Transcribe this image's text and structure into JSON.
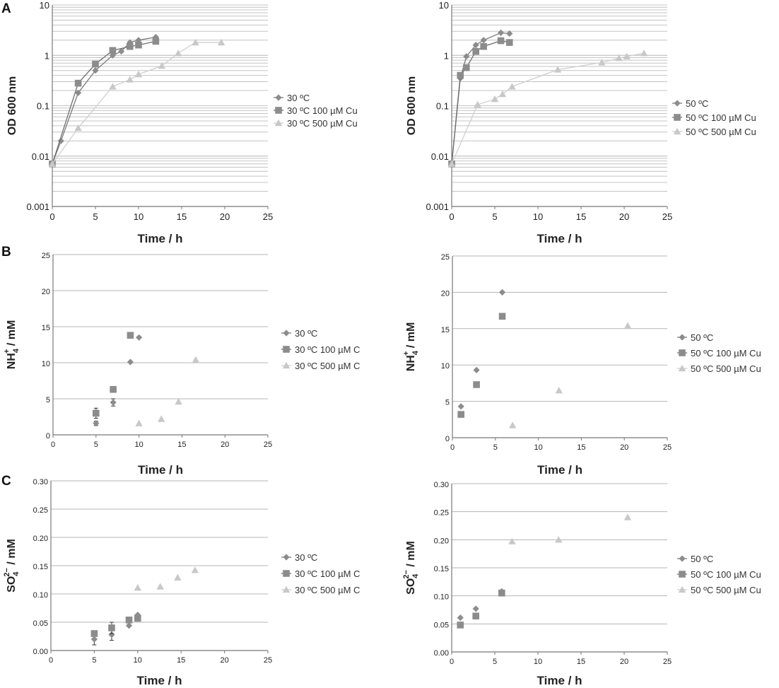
{
  "panel_letters": [
    "A",
    "B",
    "C"
  ],
  "series_colors": {
    "control": "#8c8c8c",
    "cu100": "#8c8c8c",
    "cu500": "#c8c8c8"
  },
  "chart_data": [
    {
      "id": "A1",
      "panel": "A",
      "type": "line",
      "scale": "log",
      "xlabel": "Time / h",
      "ylabel": "OD 600 nm",
      "xlim": [
        0,
        25
      ],
      "ylim": [
        0.001,
        10
      ],
      "xticks": [
        "0",
        "5",
        "10",
        "15",
        "20",
        "25"
      ],
      "yticks": [
        "0.001",
        "0.01",
        "0.1",
        "1",
        "10"
      ],
      "legend_position": "right",
      "series": [
        {
          "name": "30 ºC",
          "marker": "diamond",
          "color": "#8c8c8c",
          "x": [
            0,
            1,
            3,
            5,
            7,
            8,
            9,
            10,
            12
          ],
          "y": [
            0.007,
            0.02,
            0.18,
            0.5,
            1.0,
            1.2,
            1.8,
            2.0,
            2.3
          ]
        },
        {
          "name": "30 ºC 100 µM Cu",
          "marker": "square",
          "color": "#8c8c8c",
          "x": [
            0,
            3,
            5,
            7,
            9,
            10,
            12
          ],
          "y": [
            0.007,
            0.28,
            0.67,
            1.25,
            1.5,
            1.6,
            1.9
          ]
        },
        {
          "name": "30 ºC 500 µM Cu",
          "marker": "triangle",
          "color": "#c8c8c8",
          "x": [
            0,
            3,
            7,
            9,
            10,
            12.7,
            14.6,
            16.6,
            19.6
          ],
          "y": [
            0.007,
            0.036,
            0.24,
            0.33,
            0.42,
            0.62,
            1.1,
            1.8,
            1.8
          ]
        }
      ]
    },
    {
      "id": "A2",
      "panel": "A",
      "type": "line",
      "scale": "log",
      "xlabel": "Time / h",
      "ylabel": "OD 600 nm",
      "xlim": [
        0,
        25
      ],
      "ylim": [
        0.001,
        10
      ],
      "xticks": [
        "0",
        "5",
        "10",
        "15",
        "20",
        "25"
      ],
      "yticks": [
        "0.001",
        "0.01",
        "0.1",
        "1",
        "10"
      ],
      "legend_position": "right",
      "series": [
        {
          "name": "50 ºC",
          "marker": "diamond",
          "color": "#8c8c8c",
          "x": [
            0,
            1,
            1.7,
            2.8,
            3.7,
            5.7,
            6.7
          ],
          "y": [
            0.007,
            0.35,
            0.95,
            1.6,
            2.0,
            2.8,
            2.7
          ]
        },
        {
          "name": "50 ºC  100 µM Cu",
          "marker": "square",
          "color": "#8c8c8c",
          "x": [
            0,
            1,
            1.7,
            2.8,
            3.7,
            5.7,
            6.7
          ],
          "y": [
            0.007,
            0.4,
            0.57,
            1.2,
            1.5,
            1.95,
            1.8
          ]
        },
        {
          "name": "50 ºC  500 µM Cu",
          "marker": "triangle",
          "color": "#c8c8c8",
          "x": [
            0,
            3,
            5,
            5.9,
            7,
            12.3,
            17.4,
            19.4,
            20.3,
            22.3
          ],
          "y": [
            0.007,
            0.105,
            0.135,
            0.17,
            0.24,
            0.52,
            0.72,
            0.88,
            0.95,
            1.1
          ]
        }
      ]
    },
    {
      "id": "B1",
      "panel": "B",
      "type": "scatter",
      "xlabel": "Time / h",
      "ylabel_main": "NH",
      "ylabel_sub": "4",
      "ylabel_sup": "+",
      "ylabel_unit": " / mM",
      "xlim": [
        0,
        25
      ],
      "ylim": [
        0,
        25
      ],
      "xticks": [
        "0",
        "5",
        "10",
        "15",
        "20",
        "25"
      ],
      "yticks": [
        "0",
        "5",
        "10",
        "15",
        "20",
        "25"
      ],
      "legend_position": "right",
      "series": [
        {
          "name": "30 ºC",
          "marker": "diamond",
          "color": "#8c8c8c",
          "x": [
            5,
            7,
            9,
            10
          ],
          "y": [
            1.6,
            4.5,
            10.1,
            13.5
          ],
          "err": [
            0.3,
            0.5,
            0,
            0
          ]
        },
        {
          "name": "30 ºC 100 µM C",
          "marker": "square",
          "color": "#8c8c8c",
          "x": [
            5,
            7,
            9
          ],
          "y": [
            3.0,
            6.3,
            13.8
          ],
          "err": [
            0.7,
            0,
            0
          ]
        },
        {
          "name": "30 ºC 500 µM C",
          "marker": "triangle",
          "color": "#c8c8c8",
          "x": [
            10,
            12.6,
            14.6,
            16.6
          ],
          "y": [
            1.6,
            2.2,
            4.6,
            10.4
          ]
        }
      ]
    },
    {
      "id": "B2",
      "panel": "B",
      "type": "scatter",
      "xlabel": "Time / h",
      "ylabel_main": "NH",
      "ylabel_sub": "4",
      "ylabel_sup": "+",
      "ylabel_unit": " / mM",
      "xlim": [
        0,
        25
      ],
      "ylim": [
        0,
        25
      ],
      "xticks": [
        "0",
        "5",
        "10",
        "15",
        "20",
        "25"
      ],
      "yticks": [
        "0",
        "5",
        "10",
        "15",
        "20",
        "25"
      ],
      "legend_position": "right",
      "series": [
        {
          "name": "50 ºC",
          "marker": "diamond",
          "color": "#8c8c8c",
          "x": [
            1,
            2.8,
            5.8
          ],
          "y": [
            4.3,
            9.3,
            20
          ]
        },
        {
          "name": "50 ºC  100 µM Cu",
          "marker": "square",
          "color": "#8c8c8c",
          "x": [
            1,
            2.8,
            5.8
          ],
          "y": [
            3.2,
            7.3,
            16.7
          ]
        },
        {
          "name": "50 ºC  500 µM Cu",
          "marker": "triangle",
          "color": "#c8c8c8",
          "x": [
            7,
            12.4,
            20.4
          ],
          "y": [
            1.7,
            6.5,
            15.4
          ]
        }
      ]
    },
    {
      "id": "C1",
      "panel": "C",
      "type": "scatter",
      "xlabel": "Time / h",
      "ylabel_main": "SO",
      "ylabel_sub": "4",
      "ylabel_sup": "2−",
      "ylabel_unit": " / mM",
      "xlim": [
        0,
        25
      ],
      "ylim": [
        0,
        0.3
      ],
      "xticks": [
        "0",
        "5",
        "10",
        "15",
        "20",
        "25"
      ],
      "yticks": [
        "0.00",
        "0.05",
        "0.10",
        "0.15",
        "0.20",
        "0.25",
        "0.30"
      ],
      "legend_position": "right",
      "series": [
        {
          "name": "30 ºC",
          "marker": "diamond",
          "color": "#8c8c8c",
          "x": [
            5,
            7,
            9,
            10
          ],
          "y": [
            0.02,
            0.028,
            0.044,
            0.063
          ],
          "err": [
            0.01,
            0.01,
            0,
            0
          ]
        },
        {
          "name": "30 ºC 100 µM C",
          "marker": "square",
          "color": "#8c8c8c",
          "x": [
            5,
            7,
            9,
            10
          ],
          "y": [
            0.03,
            0.04,
            0.054,
            0.057
          ],
          "err": [
            0.005,
            0.01,
            0,
            0
          ]
        },
        {
          "name": "30 ºC 500 µM C",
          "marker": "triangle",
          "color": "#c8c8c8",
          "x": [
            10,
            12.6,
            14.6,
            16.6
          ],
          "y": [
            0.111,
            0.113,
            0.129,
            0.142
          ]
        }
      ]
    },
    {
      "id": "C2",
      "panel": "C",
      "type": "scatter",
      "xlabel": "Time / h",
      "ylabel_main": "SO",
      "ylabel_sub": "4",
      "ylabel_sup": "2−",
      "ylabel_unit": " / mM",
      "xlim": [
        0,
        25
      ],
      "ylim": [
        0,
        0.3
      ],
      "xticks": [
        "0",
        "5",
        "10",
        "15",
        "20",
        "25"
      ],
      "yticks": [
        "0.00",
        "0.05",
        "0.10",
        "0.15",
        "0.20",
        "0.25",
        "0.30"
      ],
      "legend_position": "right",
      "series": [
        {
          "name": "50 ºC",
          "marker": "diamond",
          "color": "#8c8c8c",
          "x": [
            1,
            2.8,
            5.8
          ],
          "y": [
            0.061,
            0.077,
            0.108
          ]
        },
        {
          "name": "50 ºC  100 µM Cu",
          "marker": "square",
          "color": "#8c8c8c",
          "x": [
            1,
            2.8,
            5.8
          ],
          "y": [
            0.048,
            0.064,
            0.105
          ]
        },
        {
          "name": "50 ºC  500 µM Cu",
          "marker": "triangle",
          "color": "#c8c8c8",
          "x": [
            7,
            12.4,
            20.4
          ],
          "y": [
            0.197,
            0.2,
            0.24
          ]
        }
      ]
    }
  ]
}
